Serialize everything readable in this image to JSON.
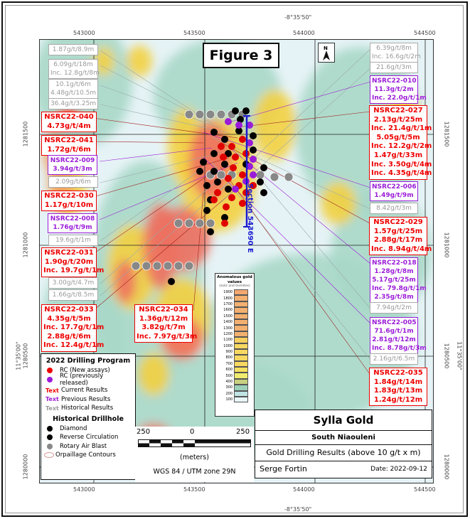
{
  "figure_title": "Figure 3",
  "coordinates": {
    "top_longitude": "-8°35'50\"",
    "bottom_longitude": "-8°35'50\"",
    "eastings": [
      "543000",
      "543500",
      "544000",
      "544500"
    ],
    "left_northings": [
      "1281500",
      "1281000",
      "1280500",
      "1280000"
    ],
    "right_northings": [
      "1281500",
      "1281000",
      "1280500",
      "1280000"
    ],
    "latitude": "11°35'00\""
  },
  "section_label": "Section 543690 E",
  "labels": [
    {
      "type": "grey",
      "lines": [
        "1.87g/t/8.9m"
      ]
    },
    {
      "type": "grey",
      "lines": [
        "6.09g/t/18m",
        "Inc. 12.8g/t/8m"
      ]
    },
    {
      "type": "grey",
      "lines": [
        "10.1g/t/6m",
        "4.48g/t/10.5m"
      ]
    },
    {
      "type": "grey",
      "lines": [
        "36.4g/t/3.25m"
      ]
    },
    {
      "type": "red",
      "lines": [
        "NSRC22-040",
        "4.73g/t/4m"
      ]
    },
    {
      "type": "red",
      "lines": [
        "NSRC22-041",
        "1.72g/t/6m"
      ]
    },
    {
      "type": "purple",
      "lines": [
        "NSRC22-009",
        "3.94g/t/3m"
      ]
    },
    {
      "type": "grey",
      "lines": [
        "2.09g/t/6m"
      ]
    },
    {
      "type": "red",
      "lines": [
        "NSRC22-030",
        "1.17g/t/10m"
      ]
    },
    {
      "type": "purple",
      "lines": [
        "NSRC22-008",
        "1.76g/t/9m"
      ]
    },
    {
      "type": "grey",
      "lines": [
        "19.6g/t/1m"
      ]
    },
    {
      "type": "red",
      "lines": [
        "NSRC22-031",
        "1.90g/t/20m",
        "Inc. 19.7g/t/1m"
      ]
    },
    {
      "type": "grey",
      "lines": [
        "3.00g/t/4.7m"
      ]
    },
    {
      "type": "grey",
      "lines": [
        "1.66g/t/8.5m"
      ]
    },
    {
      "type": "red",
      "lines": [
        "NSRC22-033",
        "4.35g/t/5m",
        "Inc. 17.7g/t/1m",
        "2.88g/t/6m",
        "Inc. 12.4g/t/1m"
      ]
    },
    {
      "type": "red",
      "lines": [
        "NSRC22-034",
        "1.36g/t/12m",
        "3.82g/t/7m",
        "Inc. 7.97g/t/3m"
      ]
    },
    {
      "type": "grey",
      "lines": [
        "6.39g/t/8m",
        "Inc. 16.6g/t/2m"
      ]
    },
    {
      "type": "grey",
      "lines": [
        "21.6g/t/3m"
      ]
    },
    {
      "type": "purple",
      "lines": [
        "NSRC22-010",
        "11.3g/t/2m",
        "Inc. 22.0g/t/1m"
      ]
    },
    {
      "type": "red",
      "lines": [
        "NSRC22-027",
        "2.13g/t/25m",
        "Inc. 21.4g/t/1m",
        "5.05g/t/5m",
        "Inc. 12.2g/t/2m",
        "1.47g/t/33m",
        "Inc. 3.50g/t/4m",
        "Inc. 4.35g/t/4m"
      ]
    },
    {
      "type": "purple",
      "lines": [
        "NSRC22-006",
        "1.49g/t/9m"
      ]
    },
    {
      "type": "grey",
      "lines": [
        "8.42g/t/3m"
      ]
    },
    {
      "type": "red",
      "lines": [
        "NSRC22-029",
        "1.57g/t/25m",
        "2.88g/t/17m",
        "Inc. 8.94g/t/4m"
      ]
    },
    {
      "type": "purple",
      "lines": [
        "NSRC22-018",
        "1.28g/t/8m",
        "5.17g/t/25m",
        "Inc. 79.8g/t/1m",
        "2.35g/t/8m"
      ]
    },
    {
      "type": "grey",
      "lines": [
        "7.94g/t/2m"
      ]
    },
    {
      "type": "purple",
      "lines": [
        "NSRC22-005",
        "71.6g/t/1m",
        "2.81g/t/12m",
        "Inc. 8.78g/t/3m"
      ]
    },
    {
      "type": "grey",
      "lines": [
        "2.16g/t/6.5m"
      ]
    },
    {
      "type": "red",
      "lines": [
        "NSRC22-035",
        "1.84g/t/14m",
        "1.83g/t/13m",
        "1.24g/t/12m"
      ]
    }
  ],
  "colors": {
    "current": "#e00000",
    "previous": "#9a1bd8",
    "historical": "#999999",
    "diamond": "#000000",
    "rab": "#888888",
    "section": "#1a1ad0"
  },
  "legend": {
    "title": "2022 Drilling Program",
    "rc_new": "RC (New assays)",
    "rc_prev": "RC (previously released)",
    "text_sample": "Text",
    "current": "Current Results",
    "previous": "Previous Results",
    "historical": "Historical Results",
    "hist_title": "Historical Drillhole",
    "diamond": "Diamond",
    "reverse": "Reverse Circulation",
    "rab": "Rotary Air Blast",
    "orpaillage": "Orpaillage Contours"
  },
  "color_scale": {
    "title": "Anomalous gold values",
    "subtitle": "(soils and termites)",
    "values": [
      "1900",
      "1800",
      "1700",
      "1600",
      "1500",
      "1400",
      "1300",
      "1200",
      "1100",
      "1000",
      "900",
      "800",
      "700",
      "600",
      "500",
      "400",
      "300",
      "200",
      "100"
    ]
  },
  "scale_bar": {
    "left": "250",
    "mid": "0",
    "right": "250",
    "unit": "(meters)",
    "projection": "WGS 84 / UTM zone 29N"
  },
  "title_block": {
    "company": "Sylla Gold",
    "project": "South Niaouleni",
    "subject": "Gold Drilling Results (above 10 g/t x m)",
    "author": "Serge Fortin",
    "date": "Date: 2022-09-12"
  }
}
